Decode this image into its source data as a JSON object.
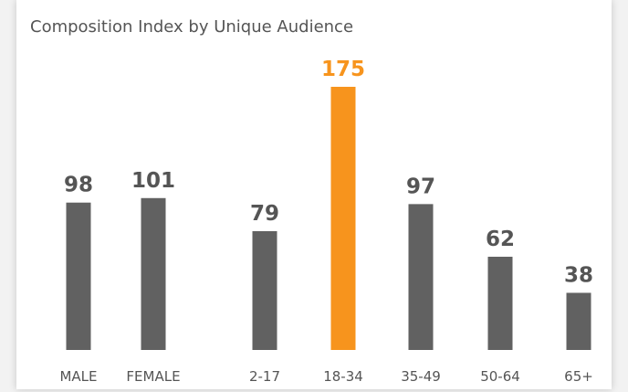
{
  "chart_data": {
    "type": "bar",
    "title": "Composition Index by Unique Audience",
    "categories": [
      "MALE",
      "FEMALE",
      "2-17",
      "18-34",
      "35-49",
      "50-64",
      "65+"
    ],
    "values": [
      98,
      101,
      79,
      175,
      97,
      62,
      38
    ],
    "colors": [
      "#616161",
      "#616161",
      "#616161",
      "#f7941d",
      "#616161",
      "#616161",
      "#616161"
    ],
    "label_colors": [
      "#555555",
      "#555555",
      "#555555",
      "#f7941d",
      "#555555",
      "#555555",
      "#555555"
    ]
  }
}
